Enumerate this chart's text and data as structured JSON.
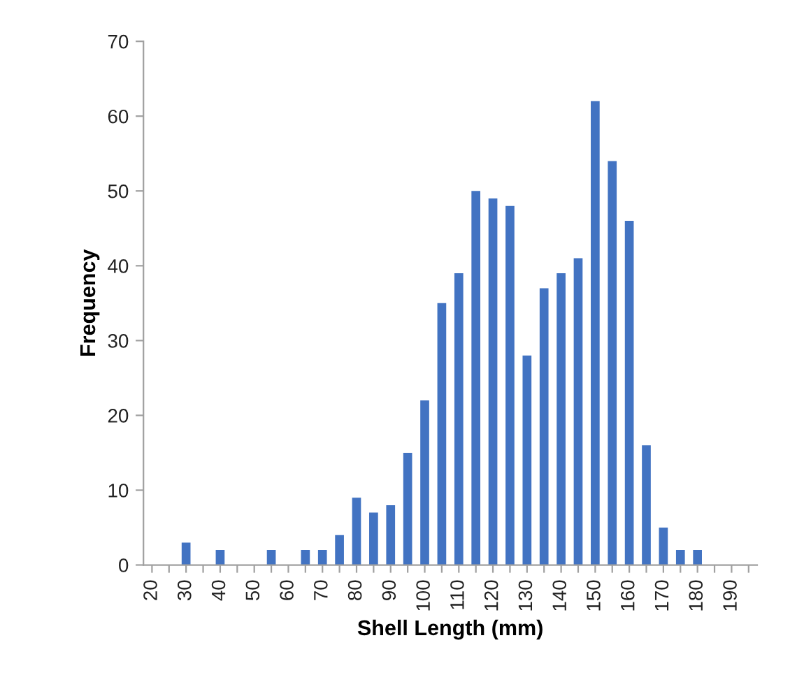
{
  "chart_data": {
    "type": "bar",
    "xlabel": "Shell Length (mm)",
    "ylabel": "Frequency",
    "x": [
      30,
      40,
      55,
      65,
      70,
      75,
      80,
      85,
      90,
      95,
      100,
      105,
      110,
      115,
      120,
      125,
      130,
      135,
      140,
      145,
      150,
      155,
      160,
      165,
      170,
      175,
      180
    ],
    "values": [
      3,
      2,
      2,
      2,
      2,
      4,
      9,
      7,
      8,
      15,
      22,
      35,
      39,
      50,
      49,
      48,
      28,
      37,
      39,
      41,
      62,
      54,
      46,
      16,
      5,
      2,
      2
    ],
    "color": "#4273c2",
    "xlim": [
      17.5,
      197.5
    ],
    "xticks": [
      20,
      {
        "value": 25,
        "label": null
      },
      30,
      {
        "value": 35,
        "label": null
      },
      40,
      {
        "value": 45,
        "label": null
      },
      50,
      {
        "value": 55,
        "label": null
      },
      60,
      {
        "value": 65,
        "label": null
      },
      70,
      {
        "value": 75,
        "label": null
      },
      80,
      {
        "value": 85,
        "label": null
      },
      90,
      {
        "value": 95,
        "label": null
      },
      100,
      {
        "value": 105,
        "label": null
      },
      110,
      {
        "value": 115,
        "label": null
      },
      120,
      {
        "value": 125,
        "label": null
      },
      130,
      {
        "value": 135,
        "label": null
      },
      140,
      {
        "value": 145,
        "label": null
      },
      150,
      {
        "value": 155,
        "label": null
      },
      160,
      {
        "value": 165,
        "label": null
      },
      170,
      {
        "value": 175,
        "label": null
      },
      180,
      {
        "value": 185,
        "label": null
      },
      190,
      {
        "value": 195,
        "label": null
      }
    ],
    "ylim": [
      0,
      70
    ],
    "yticks": [
      0,
      10,
      20,
      30,
      40,
      50,
      60,
      70
    ],
    "grid": false
  }
}
